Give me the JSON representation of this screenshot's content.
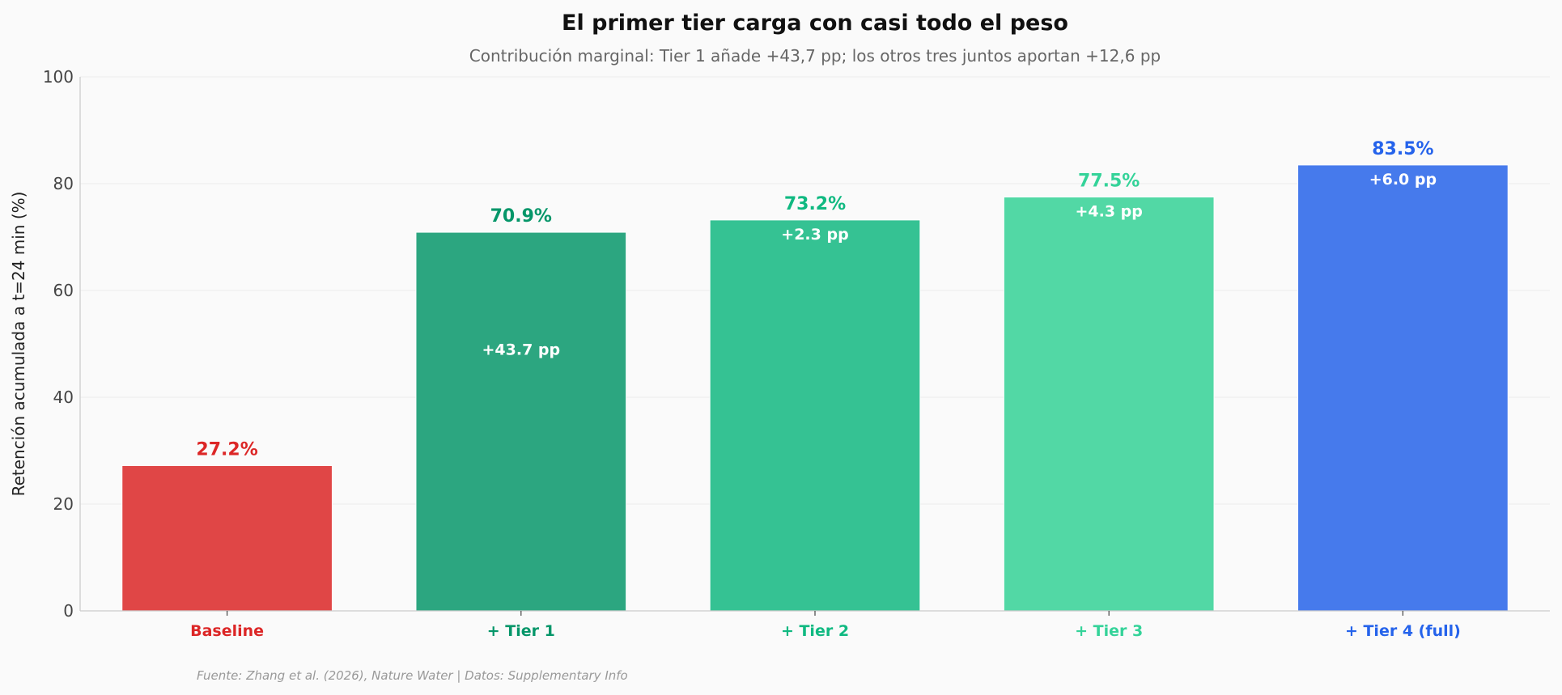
{
  "chart_data": {
    "type": "bar",
    "title": "El primer tier carga con casi todo el peso",
    "subtitle": "Contribución marginal: Tier 1 añade +43,7 pp; los otros tres juntos aportan +12,6 pp",
    "xlabel": "",
    "ylabel": "Retención acumulada a t=24 min (%)",
    "ylim": [
      0,
      100
    ],
    "yticks": [
      "0",
      "20",
      "40",
      "60",
      "80",
      "100"
    ],
    "grid": true,
    "categories": [
      "Baseline",
      "+ Tier 1",
      "+ Tier 2",
      "+ Tier 3",
      "+ Tier 4 (full)"
    ],
    "values": [
      27.2,
      70.9,
      73.2,
      77.5,
      83.5
    ],
    "value_labels": [
      "27.2%",
      "70.9%",
      "73.2%",
      "77.5%",
      "83.5%"
    ],
    "delta_labels": [
      "",
      "+43.7 pp",
      "+2.3 pp",
      "+4.3 pp",
      "+6.0 pp"
    ],
    "bar_colors": [
      "#e04646",
      "#2ca680",
      "#35c293",
      "#52d8a5",
      "#467aec"
    ],
    "label_colors": [
      "#dc2626",
      "#059669",
      "#10b981",
      "#34d399",
      "#2563eb"
    ],
    "source": "Fuente: Zhang et al. (2026), Nature Water | Datos: Supplementary Info"
  }
}
